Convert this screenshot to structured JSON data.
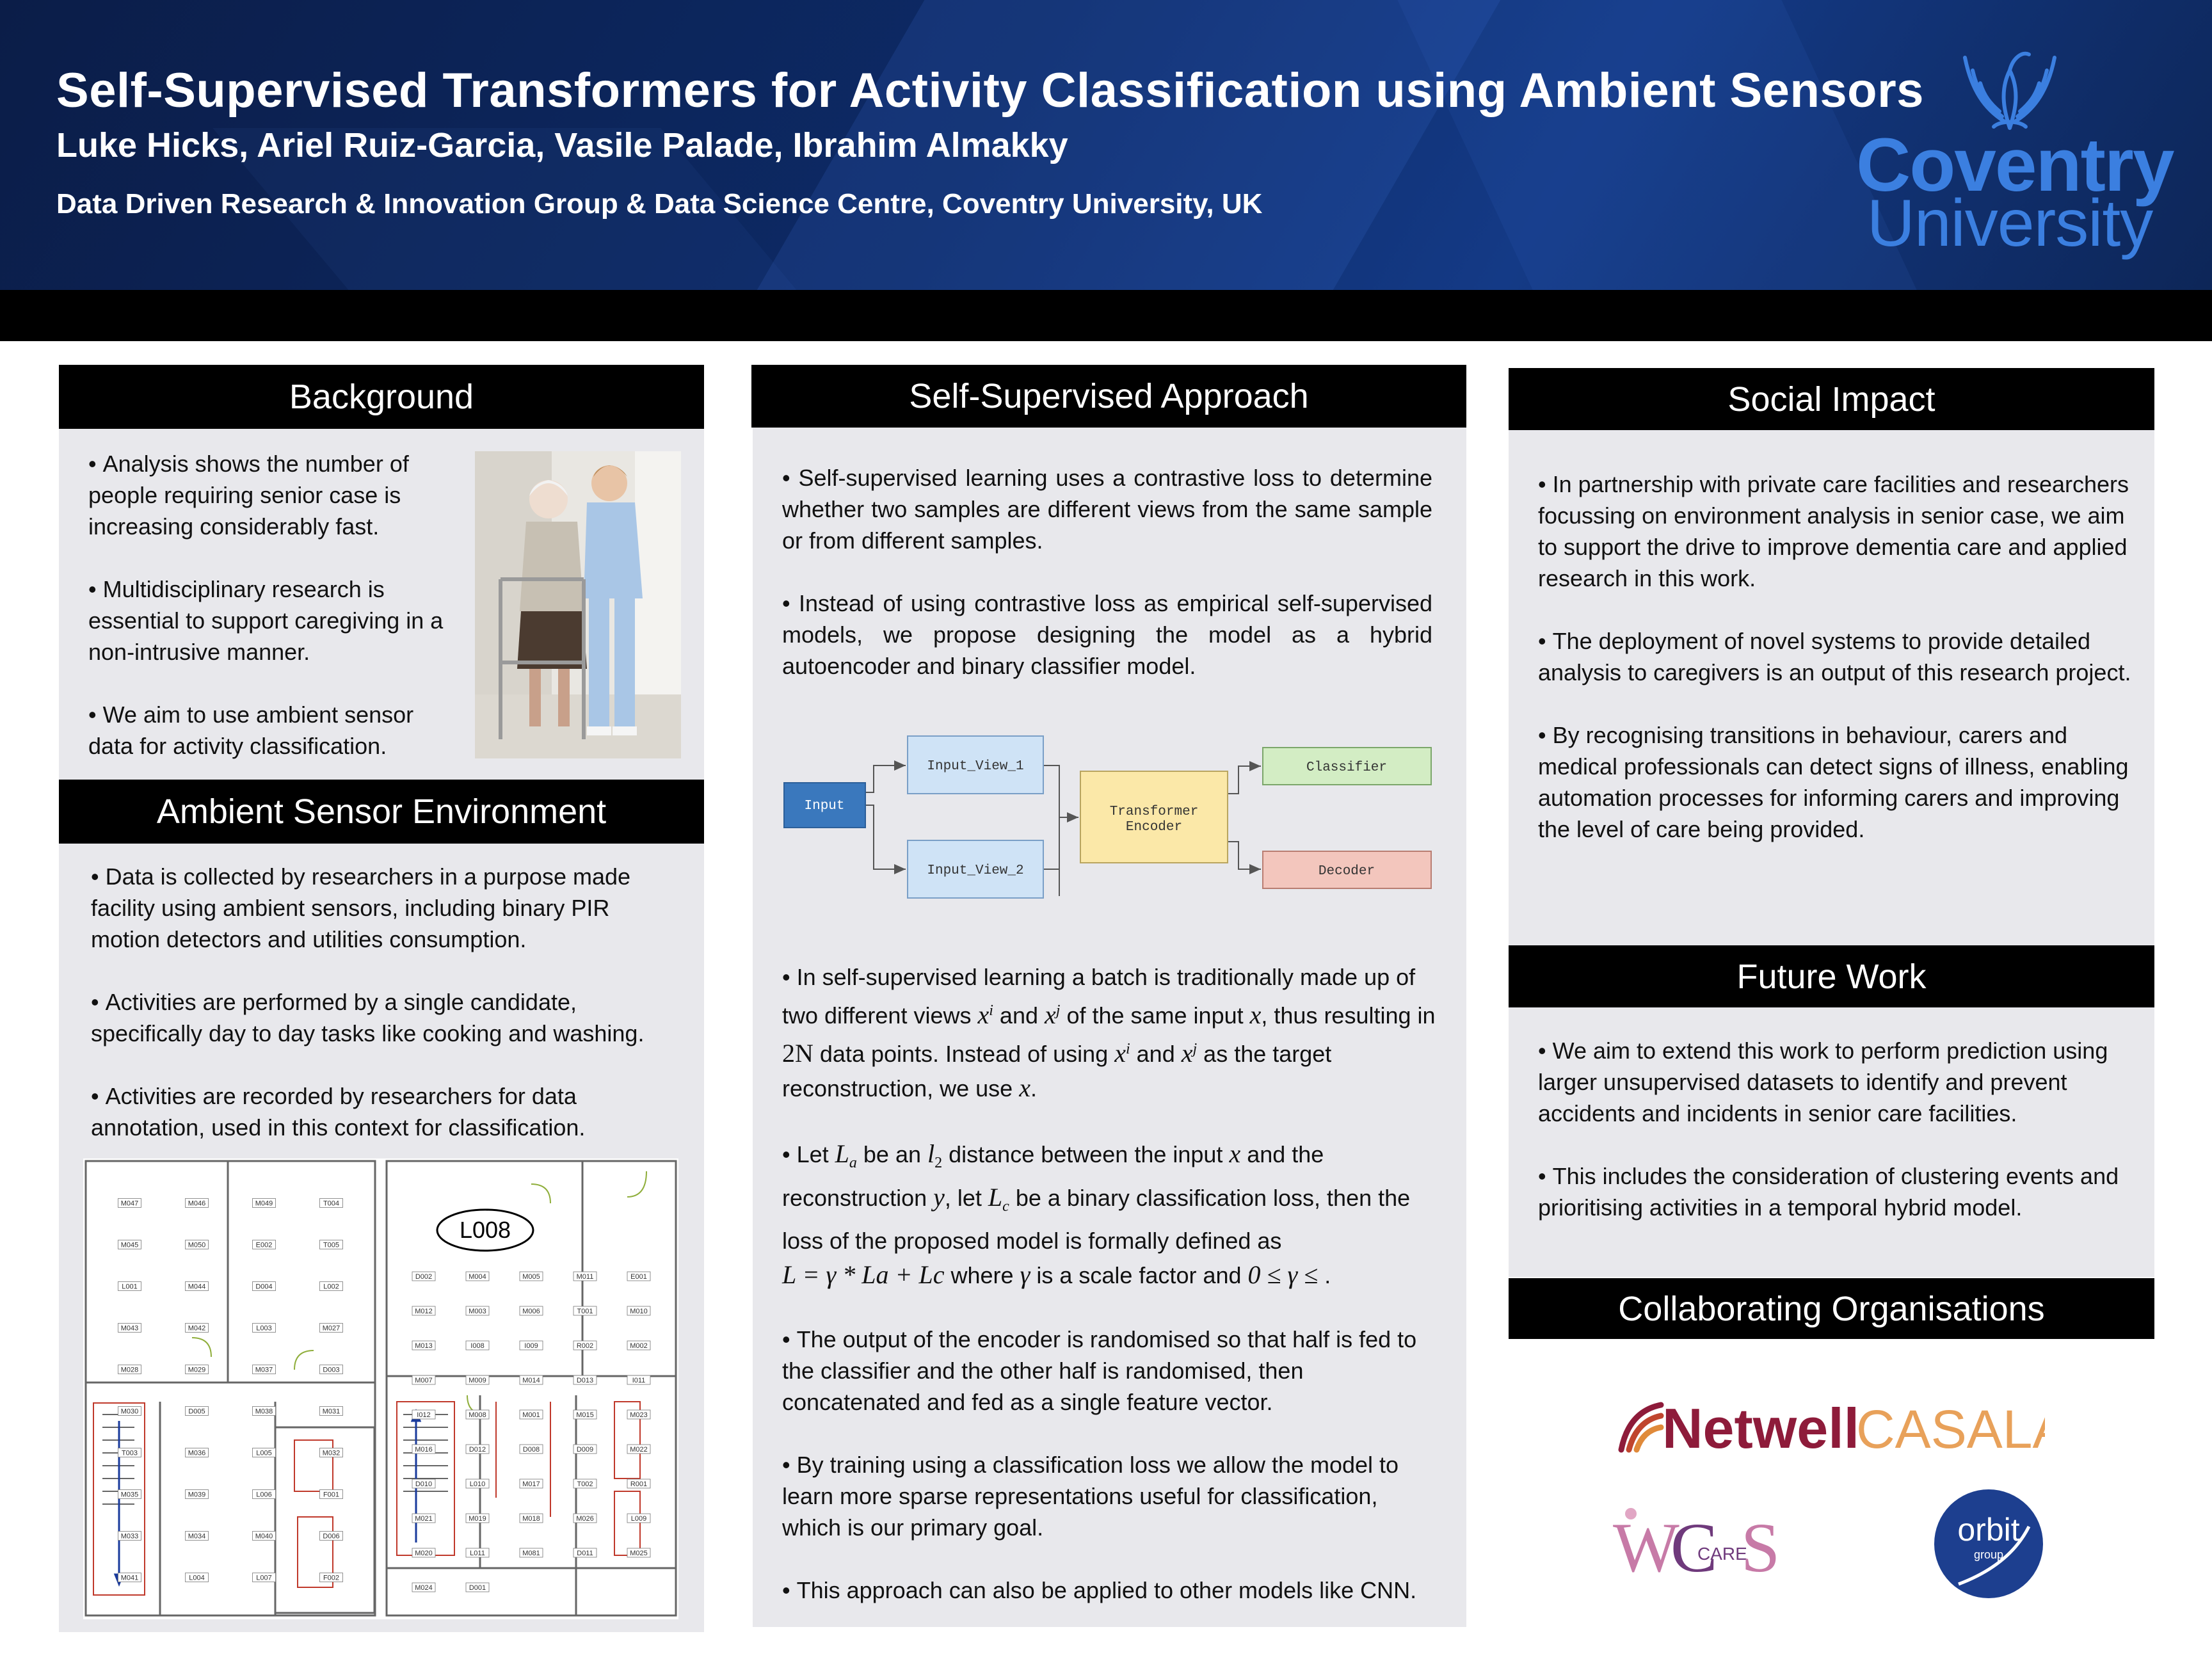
{
  "header": {
    "title": "Self-Supervised Transformers for Activity Classification using Ambient Sensors",
    "authors": "Luke Hicks, Ariel Ruiz-Garcia, Vasile Palade, Ibrahim Almakky",
    "affiliation": "Data Driven Research & Innovation Group & Data Science Centre, Coventry University, UK",
    "logo": {
      "word1": "Coventry",
      "word2": "University",
      "color": "#3b7fe0"
    }
  },
  "background": {
    "heading": "Background",
    "bullets": [
      "Analysis shows the number of people requiring senior case is increasing considerably fast.",
      "Multidisciplinary research is essential to support caregiving in a non-intrusive manner.",
      "We aim to use ambient sensor data for activity classification."
    ]
  },
  "ambient": {
    "heading": "Ambient Sensor Environment",
    "bullets": [
      "Data is collected by researchers in a purpose made facility using ambient sensors, including binary PIR motion detectors and utilities consumption.",
      "Activities are performed by a single candidate, specifically day to day tasks like cooking and washing.",
      "Activities are recorded by researchers for data annotation, used in this context for classification."
    ],
    "floorplan": {
      "left_labels": [
        "M047",
        "M046",
        "M049",
        "T004",
        "M045",
        "M050",
        "E002",
        "T005",
        "L001",
        "M044",
        "D004",
        "L002",
        "M043",
        "M042",
        "L003",
        "M027",
        "M028",
        "M029",
        "M037",
        "D003",
        "M030",
        "D005",
        "M038",
        "M031",
        "T003",
        "M036",
        "L005",
        "M032",
        "M035",
        "M039",
        "L006",
        "F001",
        "M033",
        "M034",
        "M040",
        "D006",
        "M041",
        "L004",
        "L007",
        "F002"
      ],
      "right_labels": [
        "D002",
        "M004",
        "M005",
        "M011",
        "E001",
        "M012",
        "M003",
        "M006",
        "T001",
        "M010",
        "M013",
        "I008",
        "I009",
        "R002",
        "M002",
        "M007",
        "M009",
        "M014",
        "D013",
        "I011",
        "I012",
        "M008",
        "M001",
        "M015",
        "M023",
        "M016",
        "D012",
        "D008",
        "D009",
        "M022",
        "D010",
        "L010",
        "M017",
        "T002",
        "R001",
        "M021",
        "M019",
        "M018",
        "M026",
        "L009",
        "M020",
        "L011",
        "M081",
        "D011",
        "M025",
        "M024",
        "D001"
      ],
      "room_label": "L008"
    }
  },
  "approach": {
    "heading": "Self-Supervised Approach",
    "intro": [
      "Self-supervised learning uses a contrastive loss to determine whether two samples are different views from the same sample or from different samples.",
      "Instead of using contrastive loss as empirical self-supervised models, we propose designing the model as a hybrid autoencoder and binary classifier model."
    ],
    "diagram": {
      "input": "Input",
      "view1": "Input_View_1",
      "view2": "Input_View_2",
      "encoder_line1": "Transformer",
      "encoder_line2": "Encoder",
      "classifier": "Classifier",
      "decoder": "Decoder",
      "colors": {
        "input": "#3a78bd",
        "view": "#cfe3f6",
        "encoder": "#fbe8a8",
        "classifier": "#d3edc4",
        "decoder": "#f3c6bd"
      }
    },
    "p1": {
      "a": "In self-supervised learning a batch is traditionally made up of two different views ",
      "xi": "x",
      "xi_sup": "i",
      "and1": " and ",
      "xj": "x",
      "xj_sup": "j",
      "b": " of the same input ",
      "x": "x",
      "c": ", thus resulting in ",
      "twoN": "2N",
      "d": " data points. Instead of using ",
      "xi2": "x",
      "xi2_sup": "i",
      "and2": " and ",
      "xj2": "x",
      "xj2_sup": "j",
      "e": " as the target reconstruction, we use ",
      "x2": "x",
      "f": "."
    },
    "p2": {
      "a": "Let ",
      "La": "L",
      "La_sub": "a",
      "b": " be an ",
      "l2": "l",
      "l2_sub": "2",
      "c": " distance between the input ",
      "x": "x",
      "d": " and the reconstruction ",
      "y": "y",
      "e": ", let ",
      "Lc": "L",
      "Lc_sub": "c",
      "f": " be a binary classification loss, then the loss of the proposed model is formally defined as",
      "eq": "L = γ * La + Lc",
      "g": " where ",
      "gamma": "γ",
      "h": " is a scale factor and ",
      "ineq": "0 ≤ γ ≤",
      "i": " ."
    },
    "p3": "The output of the encoder is randomised so that half is fed to the classifier and the other half is randomised, then concatenated and fed as a single feature vector.",
    "p4": "By training using a classification loss we allow the model to learn more sparse representations useful for classification, which is our primary goal.",
    "p5": "This approach can also be applied to other models like CNN."
  },
  "social": {
    "heading": "Social Impact",
    "bullets": [
      "In partnership with private care facilities and researchers focussing on environment analysis in senior case, we aim to support the drive to improve dementia care and applied research in this work.",
      "The deployment of novel systems to provide detailed analysis to caregivers is an output of this research project.",
      "By recognising transitions in behaviour, carers and medical professionals can detect signs of illness, enabling automation processes for informing carers and improving the level of care being provided."
    ]
  },
  "future": {
    "heading": "Future Work",
    "bullets": [
      "We aim to extend this work to perform prediction using larger unsupervised datasets to identify and prevent accidents and incidents in senior care facilities.",
      "This includes the consideration of clustering events and prioritising activities in a temporal hybrid model."
    ]
  },
  "collab": {
    "heading": "Collaborating Organisations",
    "netwell": "Netwell",
    "casala": "CASALA",
    "wcs_w": "W",
    "wcs_c": "C",
    "wcs_care": "CARE",
    "wcs_s": "S",
    "orbit": "orbit",
    "orbit_sub": "group"
  }
}
